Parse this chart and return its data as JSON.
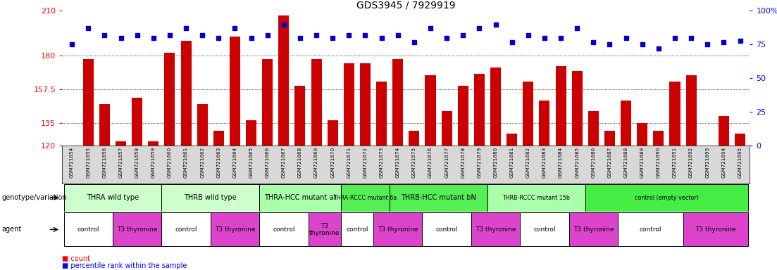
{
  "title": "GDS3945 / 7929919",
  "samples": [
    "GSM721654",
    "GSM721655",
    "GSM721656",
    "GSM721657",
    "GSM721658",
    "GSM721659",
    "GSM721660",
    "GSM721661",
    "GSM721662",
    "GSM721663",
    "GSM721664",
    "GSM721665",
    "GSM721666",
    "GSM721667",
    "GSM721668",
    "GSM721669",
    "GSM721670",
    "GSM721671",
    "GSM721672",
    "GSM721673",
    "GSM721674",
    "GSM721675",
    "GSM721676",
    "GSM721677",
    "GSM721678",
    "GSM721679",
    "GSM721680",
    "GSM721681",
    "GSM721682",
    "GSM721683",
    "GSM721684",
    "GSM721685",
    "GSM721686",
    "GSM721687",
    "GSM721688",
    "GSM721689",
    "GSM721690",
    "GSM721691",
    "GSM721692",
    "GSM721693",
    "GSM721694",
    "GSM721695"
  ],
  "counts": [
    120,
    178,
    148,
    123,
    152,
    123,
    182,
    190,
    148,
    130,
    193,
    137,
    178,
    207,
    160,
    178,
    137,
    175,
    175,
    163,
    178,
    130,
    167,
    143,
    160,
    168,
    172,
    128,
    163,
    150,
    173,
    170,
    143,
    130,
    150,
    135,
    130,
    163,
    167,
    120,
    140,
    128
  ],
  "percentile": [
    75,
    87,
    82,
    80,
    82,
    80,
    82,
    87,
    82,
    80,
    87,
    80,
    82,
    90,
    80,
    82,
    80,
    82,
    82,
    80,
    82,
    77,
    87,
    80,
    82,
    87,
    90,
    77,
    82,
    80,
    80,
    87,
    77,
    75,
    80,
    75,
    72,
    80,
    80,
    75,
    77,
    78
  ],
  "ylim_left": [
    120,
    210
  ],
  "ylim_right": [
    0,
    100
  ],
  "yticks_left": [
    120,
    135,
    157.5,
    180,
    210
  ],
  "yticks_right": [
    0,
    25,
    50,
    75,
    100
  ],
  "bar_color": "#cc0000",
  "dot_color": "#0000cc",
  "genotype_groups": [
    {
      "label": "THRA wild type",
      "start": 0,
      "end": 5,
      "color": "#ccffcc"
    },
    {
      "label": "THRB wild type",
      "start": 6,
      "end": 11,
      "color": "#ccffcc"
    },
    {
      "label": "THRA-HCC mutant al",
      "start": 12,
      "end": 16,
      "color": "#aaffaa"
    },
    {
      "label": "THRA-RCCC mutant 6a",
      "start": 17,
      "end": 19,
      "color": "#55ee55"
    },
    {
      "label": "THRB-HCC mutant bN",
      "start": 20,
      "end": 25,
      "color": "#55ee55"
    },
    {
      "label": "THRB-RCCC mutant 15b",
      "start": 26,
      "end": 31,
      "color": "#aaffaa"
    },
    {
      "label": "control (empty vector)",
      "start": 32,
      "end": 41,
      "color": "#44ee44"
    }
  ],
  "agent_groups": [
    {
      "label": "control",
      "start": 0,
      "end": 2,
      "color": "#ffffff"
    },
    {
      "label": "T3 thyronine",
      "start": 3,
      "end": 5,
      "color": "#dd44cc"
    },
    {
      "label": "control",
      "start": 6,
      "end": 8,
      "color": "#ffffff"
    },
    {
      "label": "T3 thyronine",
      "start": 9,
      "end": 11,
      "color": "#dd44cc"
    },
    {
      "label": "control",
      "start": 12,
      "end": 14,
      "color": "#ffffff"
    },
    {
      "label": "T3\nthyronine",
      "start": 15,
      "end": 16,
      "color": "#dd44cc"
    },
    {
      "label": "control",
      "start": 17,
      "end": 18,
      "color": "#ffffff"
    },
    {
      "label": "T3 thyronine",
      "start": 19,
      "end": 21,
      "color": "#dd44cc"
    },
    {
      "label": "control",
      "start": 22,
      "end": 24,
      "color": "#ffffff"
    },
    {
      "label": "T3 thyronine",
      "start": 25,
      "end": 27,
      "color": "#dd44cc"
    },
    {
      "label": "control",
      "start": 28,
      "end": 30,
      "color": "#ffffff"
    },
    {
      "label": "T3 thyronine",
      "start": 31,
      "end": 33,
      "color": "#dd44cc"
    },
    {
      "label": "control",
      "start": 34,
      "end": 37,
      "color": "#ffffff"
    },
    {
      "label": "T3 thyronine",
      "start": 38,
      "end": 41,
      "color": "#dd44cc"
    }
  ],
  "background_color": "#ffffff"
}
